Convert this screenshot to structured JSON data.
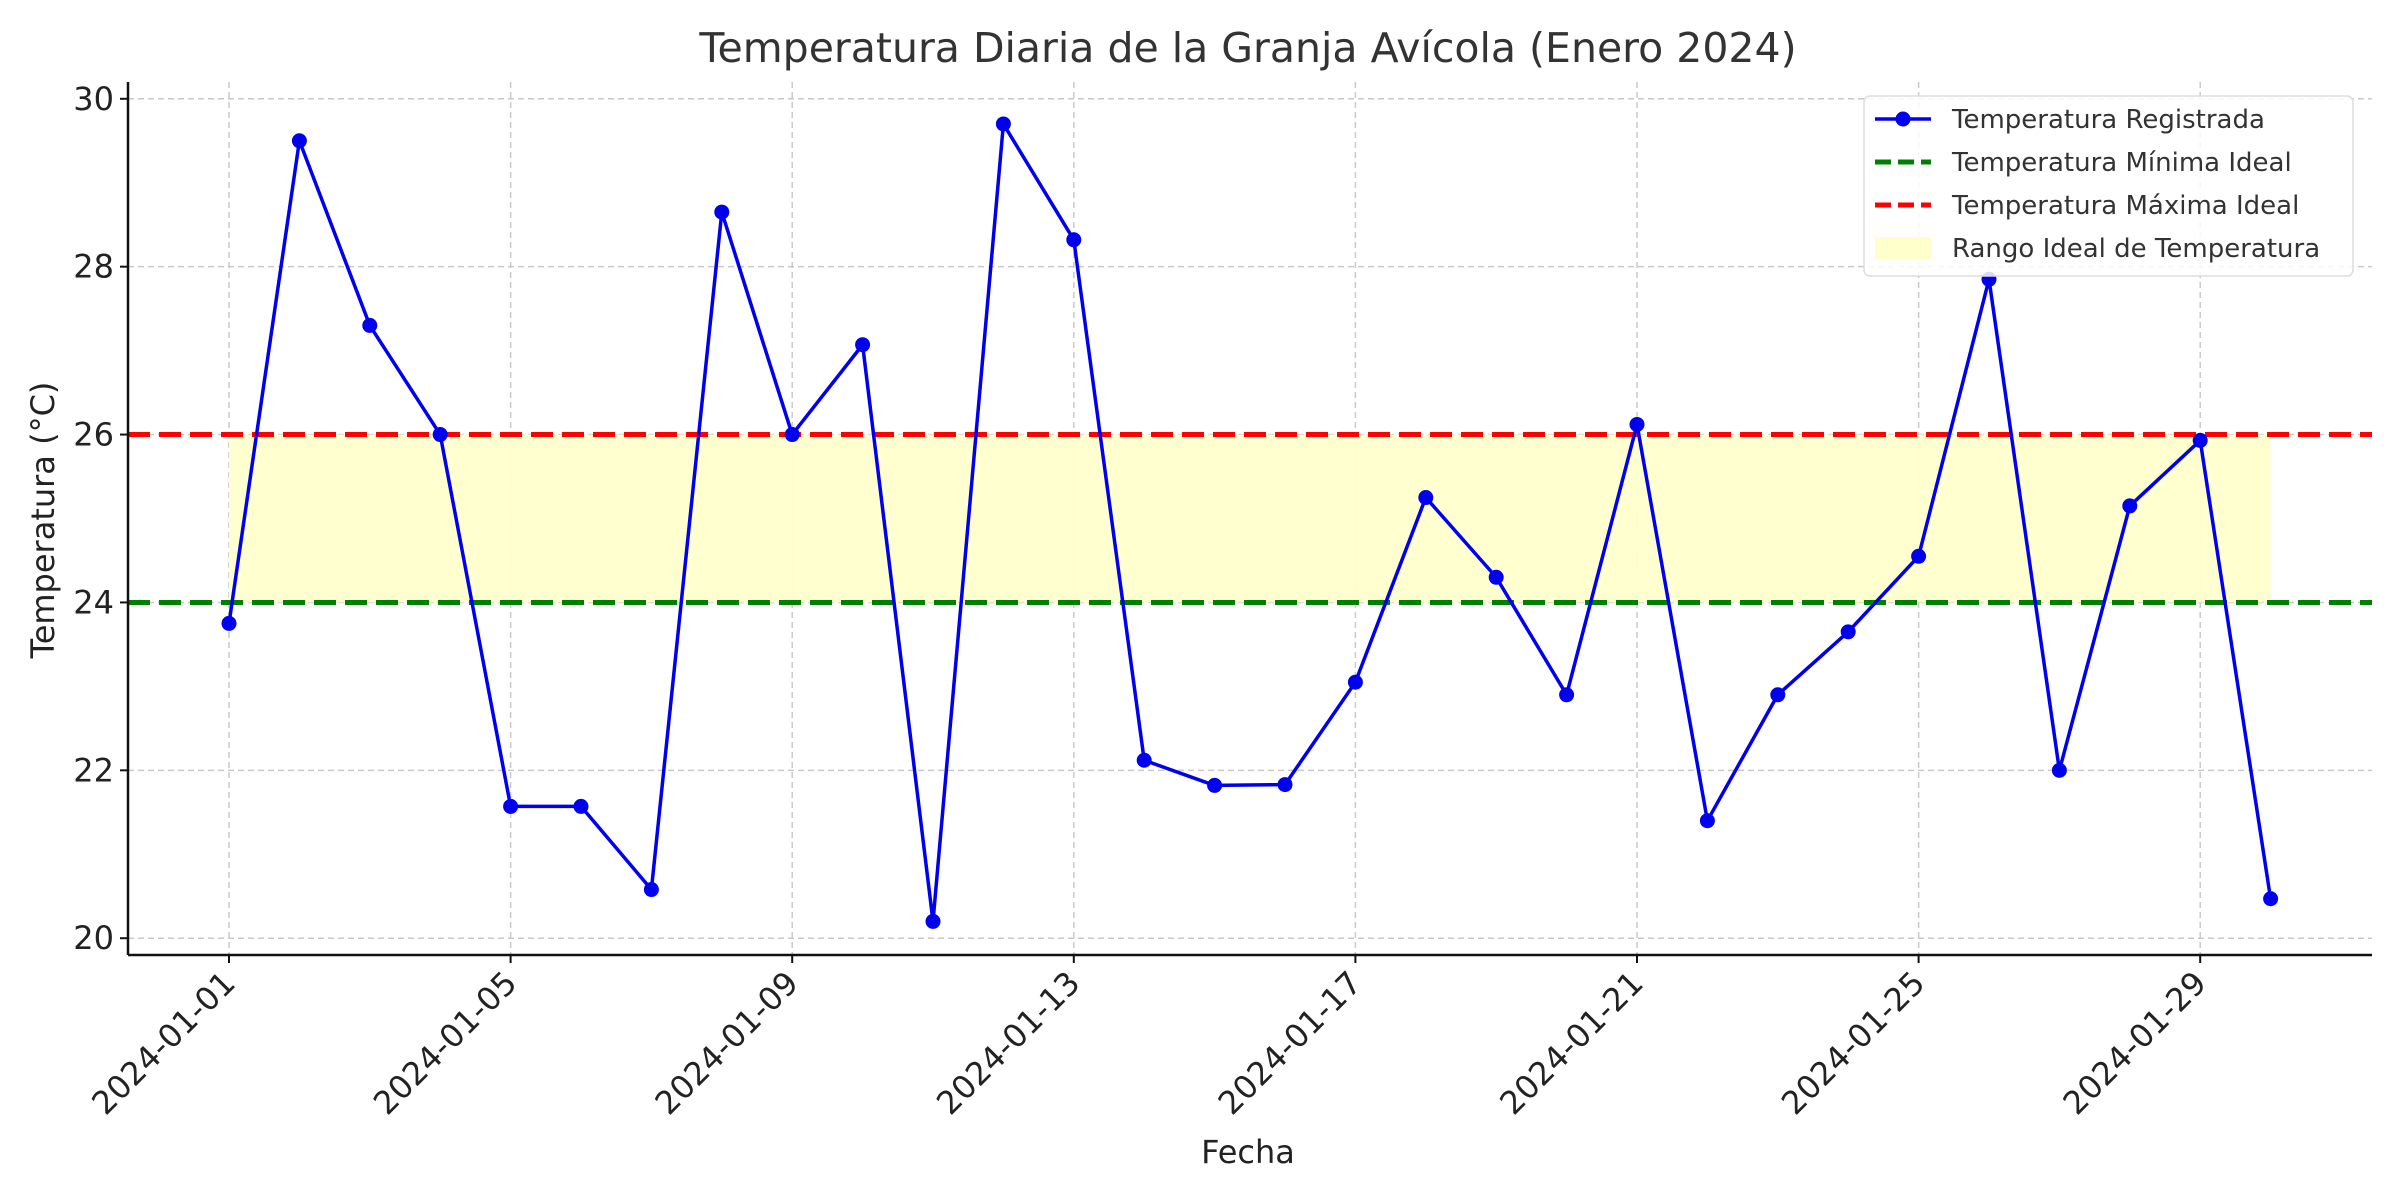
{
  "chart_data": {
    "type": "line",
    "title": "Temperatura Diaria de la Granja Avícola (Enero 2024)",
    "xlabel": "Fecha",
    "ylabel": "Temperatura (°C)",
    "x": [
      "2024-01-01",
      "2024-01-02",
      "2024-01-03",
      "2024-01-04",
      "2024-01-05",
      "2024-01-06",
      "2024-01-07",
      "2024-01-08",
      "2024-01-09",
      "2024-01-10",
      "2024-01-11",
      "2024-01-12",
      "2024-01-13",
      "2024-01-14",
      "2024-01-15",
      "2024-01-16",
      "2024-01-17",
      "2024-01-18",
      "2024-01-19",
      "2024-01-20",
      "2024-01-21",
      "2024-01-22",
      "2024-01-23",
      "2024-01-24",
      "2024-01-25",
      "2024-01-26",
      "2024-01-27",
      "2024-01-28",
      "2024-01-29",
      "2024-01-30"
    ],
    "x_tick_labels": [
      "2024-01-01",
      "2024-01-05",
      "2024-01-09",
      "2024-01-13",
      "2024-01-17",
      "2024-01-21",
      "2024-01-25",
      "2024-01-29"
    ],
    "y_ticks": [
      20,
      22,
      24,
      26,
      28,
      30
    ],
    "ylim": [
      19.8,
      30.2
    ],
    "grid": true,
    "legend_position": "top-right",
    "series": [
      {
        "name": "Temperatura Registrada",
        "color": "#0000ee",
        "marker": "circle",
        "values": [
          23.75,
          29.5,
          27.3,
          26.0,
          21.57,
          21.57,
          20.58,
          28.65,
          26.0,
          27.07,
          20.2,
          29.7,
          28.32,
          22.12,
          21.82,
          21.83,
          23.05,
          25.25,
          24.3,
          22.9,
          26.12,
          21.4,
          22.9,
          23.65,
          24.55,
          27.85,
          22.0,
          25.15,
          25.93,
          20.47
        ]
      }
    ],
    "reference_lines": [
      {
        "name": "Temperatura Mínima Ideal",
        "value": 24,
        "color": "#008000",
        "style": "dashed"
      },
      {
        "name": "Temperatura Máxima Ideal",
        "value": 26,
        "color": "#ff0000",
        "style": "dashed"
      }
    ],
    "band": {
      "name": "Rango Ideal de Temperatura",
      "from": 24,
      "to": 26,
      "color": "#ffffcc"
    }
  }
}
